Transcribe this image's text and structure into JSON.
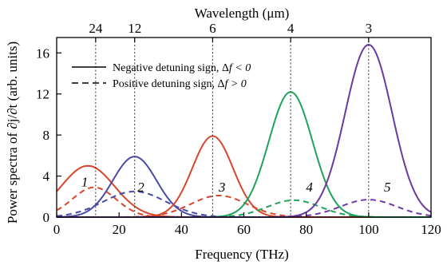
{
  "chart_data": {
    "type": "line",
    "xlabel": "Frequency (THz)",
    "ylabel": "Power spectra of ∂j/∂t (arb. units)",
    "top_axis_label": "Wavelength (μm)",
    "xlim": [
      0,
      120
    ],
    "ylim": [
      0,
      17.5
    ],
    "x_ticks": [
      0,
      20,
      40,
      60,
      80,
      100,
      120
    ],
    "y_ticks": [
      0,
      4,
      8,
      12,
      16
    ],
    "top_ticks": [
      {
        "label": "24",
        "frequency": 12.5
      },
      {
        "label": "12",
        "frequency": 25
      },
      {
        "label": "6",
        "frequency": 50
      },
      {
        "label": "4",
        "frequency": 75
      },
      {
        "label": "3",
        "frequency": 100
      }
    ],
    "legend": {
      "placement": "top-left",
      "entries": [
        {
          "style": "solid",
          "prefix": "Negative detuning sign, Δ",
          "math": "f < 0"
        },
        {
          "style": "dashed",
          "prefix": "Positive detuning sign, Δ",
          "math": "f > 0"
        }
      ]
    },
    "curve_labels": [
      {
        "text": "1",
        "x": 9,
        "y": 3.0
      },
      {
        "text": "2",
        "x": 27,
        "y": 2.5
      },
      {
        "text": "3",
        "x": 53,
        "y": 2.5
      },
      {
        "text": "4",
        "x": 81,
        "y": 2.5
      },
      {
        "text": "5",
        "x": 106,
        "y": 2.5
      }
    ],
    "series": [
      {
        "id": 1,
        "color": "#d9462c",
        "style": "solid",
        "center": 10,
        "peak": 5.0,
        "width": 8.5
      },
      {
        "id": 1,
        "color": "#d9462c",
        "style": "dashed",
        "center": 12,
        "peak": 2.9,
        "width": 7.0
      },
      {
        "id": 2,
        "color": "#4a4ba6",
        "style": "solid",
        "center": 25,
        "peak": 5.9,
        "width": 7.0
      },
      {
        "id": 2,
        "color": "#4a4ba6",
        "style": "dashed",
        "center": 25,
        "peak": 2.5,
        "width": 10.0
      },
      {
        "id": 3,
        "color": "#d9462c",
        "style": "solid",
        "center": 50,
        "peak": 7.9,
        "width": 6.5
      },
      {
        "id": 3,
        "color": "#d9462c",
        "style": "dashed",
        "center": 52,
        "peak": 2.1,
        "width": 9.0
      },
      {
        "id": 4,
        "color": "#1ea35a",
        "style": "solid",
        "center": 75,
        "peak": 12.2,
        "width": 7.0
      },
      {
        "id": 4,
        "color": "#1ea35a",
        "style": "dashed",
        "center": 76,
        "peak": 1.65,
        "width": 8.5
      },
      {
        "id": 5,
        "color": "#6b3aa1",
        "style": "solid",
        "center": 100,
        "peak": 16.8,
        "width": 7.5
      },
      {
        "id": 5,
        "color": "#6b3aa1",
        "style": "dashed",
        "center": 100,
        "peak": 1.7,
        "width": 9.0
      }
    ],
    "reference_lines": [
      12.5,
      25,
      50,
      75,
      100
    ],
    "grid": false
  }
}
